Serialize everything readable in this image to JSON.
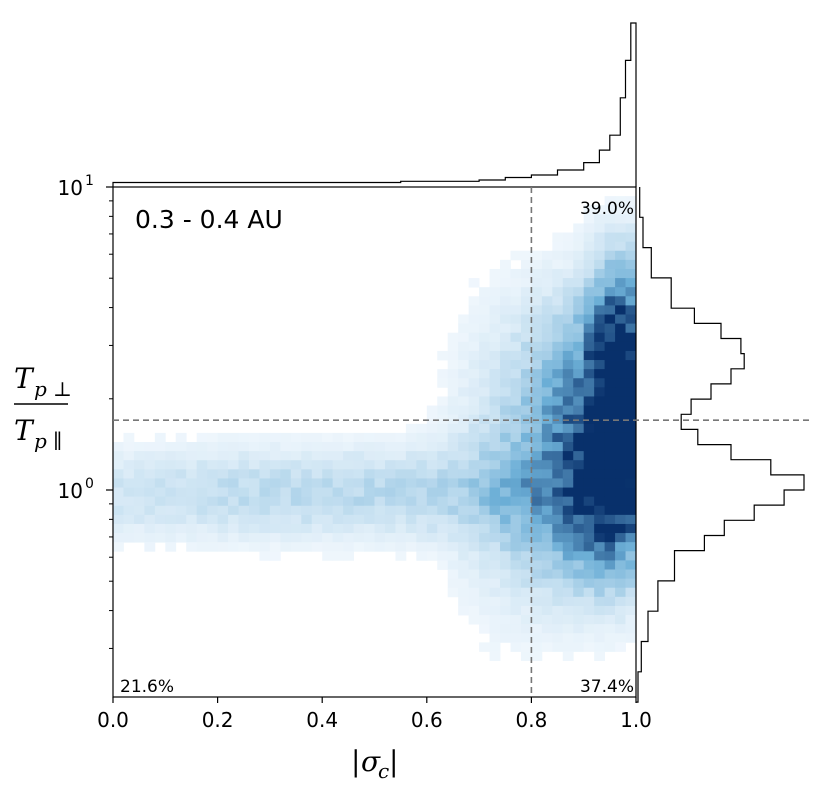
{
  "chart_data": {
    "type": "heatmap",
    "panel_label": "0.3 - 0.4 AU",
    "xlabel": "|σc|",
    "ylabel": "Tp⊥ / Tp∥",
    "xlim": [
      0.0,
      1.0
    ],
    "ylim": [
      0.2,
      10
    ],
    "yscale": "log",
    "x_ticks": [
      "0.0",
      "0.2",
      "0.4",
      "0.6",
      "0.8",
      "1.0"
    ],
    "y_ticks": [
      {
        "base": "10",
        "exp": "0"
      },
      {
        "base": "10",
        "exp": "1"
      }
    ],
    "x_threshold": 0.8,
    "y_threshold": 1.7,
    "quadrant_percentages": {
      "upper_right": "39.0%",
      "lower_left": "21.6%",
      "lower_right": "37.4%"
    },
    "colormap": "Blues",
    "color_low": "#f7fbff",
    "color_high": "#08306b",
    "top_histogram": {
      "description_of_shape": "counts vs |σc|",
      "x": [
        0.0,
        0.05,
        0.1,
        0.15,
        0.2,
        0.25,
        0.3,
        0.35,
        0.4,
        0.45,
        0.5,
        0.55,
        0.6,
        0.65,
        0.7,
        0.75,
        0.8,
        0.85,
        0.9,
        0.93,
        0.95,
        0.97,
        0.98,
        0.99,
        1.0
      ],
      "counts": [
        2,
        2,
        2,
        2,
        2,
        2,
        2,
        2,
        2,
        2,
        2,
        3,
        3,
        3,
        4,
        6,
        8,
        12,
        18,
        28,
        40,
        70,
        100,
        130,
        0
      ]
    },
    "right_histogram": {
      "log10_ratio": [
        -0.7,
        -0.6,
        -0.5,
        -0.4,
        -0.3,
        -0.2,
        -0.15,
        -0.1,
        -0.05,
        0.0,
        0.05,
        0.1,
        0.15,
        0.2,
        0.25,
        0.3,
        0.35,
        0.4,
        0.45,
        0.5,
        0.55,
        0.6,
        0.7,
        0.8,
        0.9,
        1.0
      ],
      "counts": [
        0,
        2,
        6,
        12,
        22,
        40,
        52,
        70,
        88,
        100,
        80,
        56,
        36,
        26,
        32,
        44,
        56,
        64,
        62,
        50,
        34,
        20,
        8,
        3,
        1,
        0
      ]
    },
    "density_blobs": [
      {
        "sx": 0.97,
        "ly": 0.44,
        "wx": 0.04,
        "wy": 0.2,
        "amp": 1.0
      },
      {
        "sx": 0.96,
        "ly": 0.02,
        "wx": 0.06,
        "wy": 0.2,
        "amp": 0.75
      },
      {
        "sx": 0.9,
        "ly": 0.3,
        "wx": 0.08,
        "wy": 0.22,
        "amp": 0.45
      },
      {
        "sx": 0.88,
        "ly": -0.05,
        "wx": 0.09,
        "wy": 0.2,
        "amp": 0.35
      },
      {
        "sx": 0.45,
        "ly": -0.01,
        "wx": 0.5,
        "wy": 0.1,
        "amp": 0.22
      },
      {
        "sx": 0.75,
        "ly": 0.1,
        "wx": 0.08,
        "wy": 0.35,
        "amp": 0.12
      }
    ]
  }
}
